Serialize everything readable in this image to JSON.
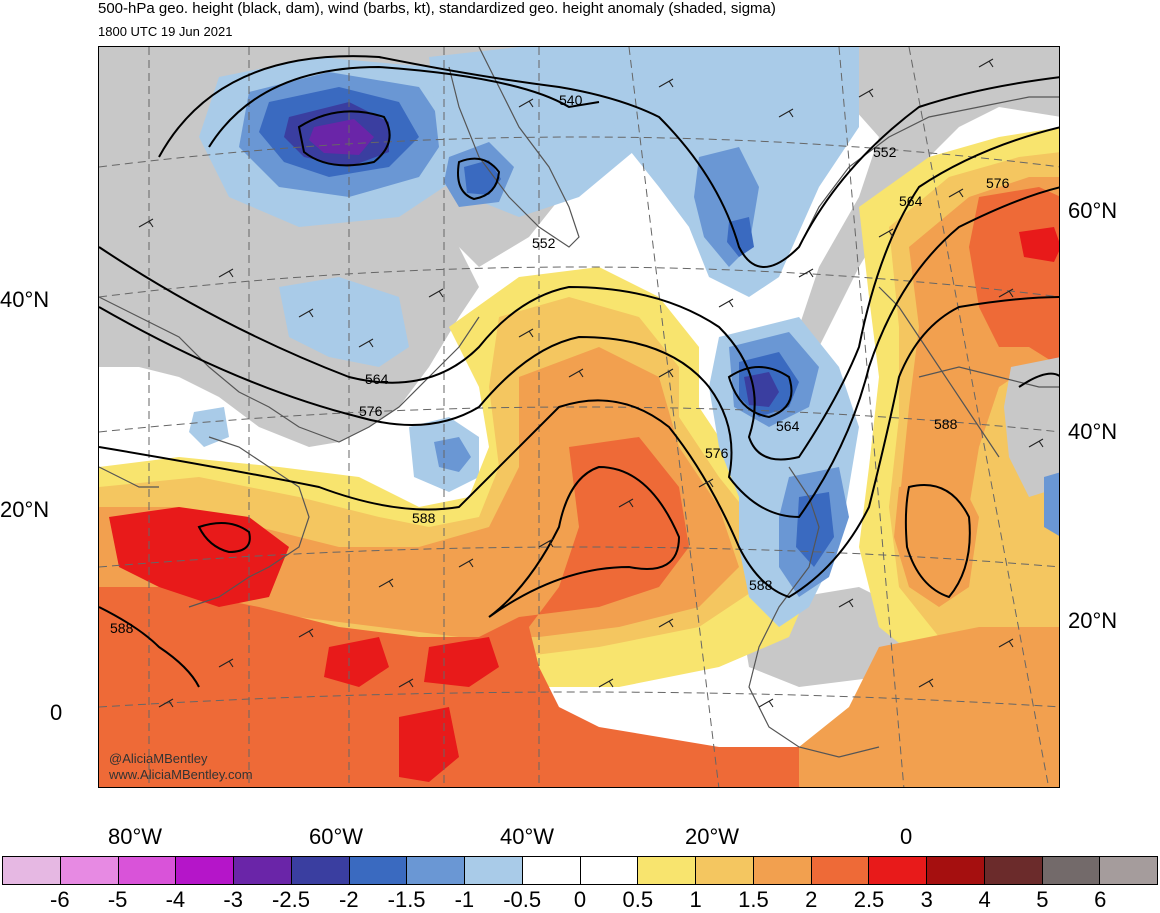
{
  "header": {
    "title": "500-hPa geo. height (black, dam), wind (barbs, kt), standardized geo. height anomaly (shaded, sigma)",
    "valid_time": "1800 UTC 19 Jun 2021"
  },
  "map": {
    "lon_labels": [
      "80°W",
      "60°W",
      "40°W",
      "20°W",
      "0"
    ],
    "lat_labels_left": [
      "40°N",
      "20°N",
      "0"
    ],
    "lat_labels_right": [
      "60°N",
      "40°N",
      "20°N"
    ],
    "contour_labels": [
      "540",
      "552",
      "552",
      "564",
      "564",
      "564",
      "576",
      "576",
      "576",
      "588",
      "588",
      "588",
      "588"
    ],
    "credits": [
      "@AliciaMBentley",
      "www.AliciaMBentley.com"
    ],
    "anomaly_regions": [
      {
        "name": "negative-anomaly-labrador",
        "sigma": -2.5
      },
      {
        "name": "negative-anomaly-greenland-south",
        "sigma": -2
      },
      {
        "name": "negative-anomaly-iceland",
        "sigma": -1.5
      },
      {
        "name": "negative-anomaly-azores-low",
        "sigma": -2.5
      },
      {
        "name": "negative-anomaly-canary",
        "sigma": -1.5
      },
      {
        "name": "negative-anomaly-atlantic-small",
        "sigma": -1
      },
      {
        "name": "positive-anomaly-mid-atlantic-ridge",
        "sigma": 2
      },
      {
        "name": "positive-anomaly-caribbean",
        "sigma": 3
      },
      {
        "name": "positive-anomaly-tropical-atlantic",
        "sigma": 2.5
      },
      {
        "name": "positive-anomaly-europe",
        "sigma": 2
      },
      {
        "name": "positive-anomaly-scandinavia",
        "sigma": 3
      },
      {
        "name": "positive-anomaly-iberia-sahara",
        "sigma": 1.5
      }
    ]
  },
  "colorbar": {
    "colors": [
      "#e6b8e3",
      "#e78ae3",
      "#d953d9",
      "#b515c9",
      "#6a25a8",
      "#3a3ea0",
      "#3a6ac0",
      "#6a97d4",
      "#a9cbe8",
      "#ffffff",
      "#ffffff",
      "#f8e46e",
      "#f4c660",
      "#f2a04f",
      "#ee6a37",
      "#e81a1a",
      "#a50f0f",
      "#6b2b2b",
      "#736a6a",
      "#a59c9c"
    ],
    "tick_labels": [
      "-6",
      "-5",
      "-4",
      "-3",
      "-2.5",
      "-2",
      "-1.5",
      "-1",
      "-0.5",
      "0",
      "0.5",
      "1",
      "1.5",
      "2",
      "2.5",
      "3",
      "4",
      "5",
      "6"
    ]
  },
  "colors": {
    "land_gray": "#c8c8c8",
    "contour": "#000000",
    "coastline": "#555555"
  }
}
